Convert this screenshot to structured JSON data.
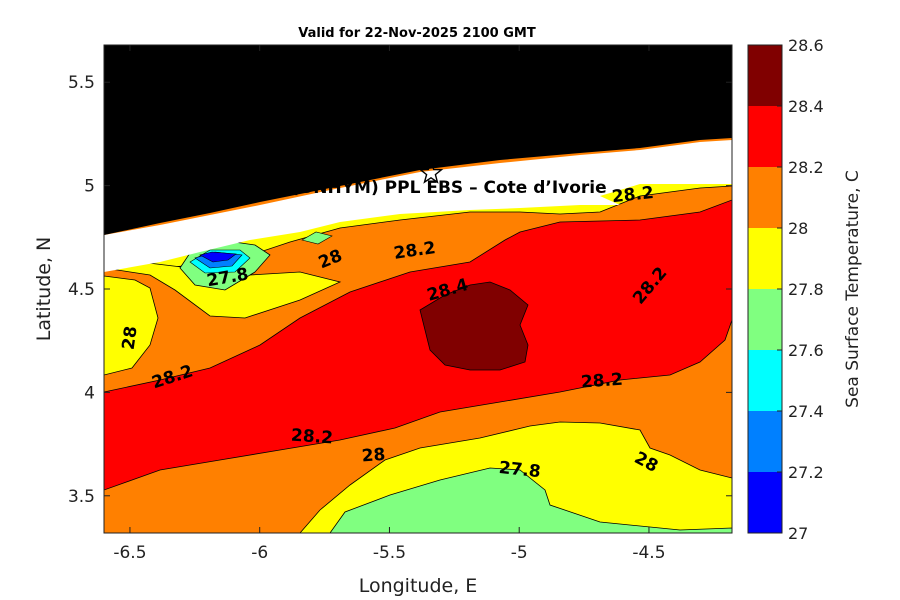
{
  "title": "Valid for 22-Nov-2025 2100 GMT",
  "site_label": "OA (ONHYM) PPL EBS  – Cote d’Ivorie",
  "colors": {
    "land": "#000000",
    "c27_0": "#0000ff",
    "c27_2": "#0080ff",
    "c27_4": "#00ffff",
    "c27_6": "#80ff80",
    "c27_8": "#ffff00",
    "c28_0": "#ff8000",
    "c28_2": "#ff0000",
    "c28_4": "#800000"
  },
  "chart_data": {
    "type": "contour-map",
    "xlabel": "Longitude, E",
    "ylabel": "Latitude, N",
    "xlim": [
      -6.6,
      -4.18
    ],
    "ylim": [
      3.32,
      5.68
    ],
    "xticks": [
      "-6.5",
      "-6",
      "-5.5",
      "-5",
      "-4.5"
    ],
    "yticks": [
      "3.5",
      "4",
      "4.5",
      "5",
      "5.5"
    ],
    "colorbar": {
      "label": "Sea Surface Temperature, C",
      "ticks": [
        "27",
        "27.2",
        "27.4",
        "27.6",
        "27.8",
        "28",
        "28.2",
        "28.4",
        "28.6"
      ]
    },
    "contour_labels": [
      {
        "text": "27.8",
        "lon": -6.12,
        "lat": 4.53
      },
      {
        "text": "28",
        "lon": -5.72,
        "lat": 4.62
      },
      {
        "text": "28.2",
        "lon": -5.4,
        "lat": 4.66
      },
      {
        "text": "28.4",
        "lon": -5.27,
        "lat": 4.47
      },
      {
        "text": "28",
        "lon": -6.48,
        "lat": 4.26
      },
      {
        "text": "28.2",
        "lon": -6.33,
        "lat": 4.05
      },
      {
        "text": "28.2",
        "lon": -4.48,
        "lat": 4.5
      },
      {
        "text": "28.2",
        "lon": -4.68,
        "lat": 4.03
      },
      {
        "text": "28.2",
        "lon": -4.56,
        "lat": 4.93
      },
      {
        "text": "28.2",
        "lon": -5.8,
        "lat": 3.76
      },
      {
        "text": "28",
        "lon": -5.56,
        "lat": 3.67
      },
      {
        "text": "27.8",
        "lon": -5.0,
        "lat": 3.6
      },
      {
        "text": "28",
        "lon": -4.52,
        "lat": 3.64
      }
    ],
    "site_marker": {
      "symbol": "star",
      "lon": -5.34,
      "lat": 5.06
    }
  }
}
